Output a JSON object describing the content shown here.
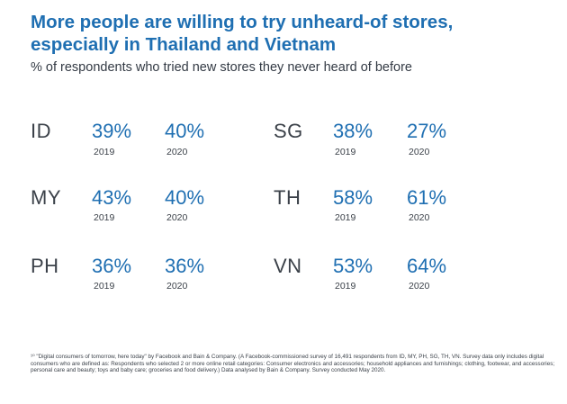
{
  "title": "More people are willing to try unheard-of stores, especially in Thailand and Vietnam",
  "subtitle": "% of respondents who tried new stores they never heard of before",
  "footnote": "¹⁰ \"Digital consumers of tomorrow, here today\" by Facebook and Bain & Company. (A Facebook-commissioned survey of 16,491 respondents from ID, MY, PH, SG, TH, VN. Survey data only includes digital consumers who are defined as: Respondents who selected 2 or more online retail categories: Consumer electronics and accessories; household appliances and furnishings; clothing, footwear, and accessories; personal care and beauty; toys and baby care; groceries and food delivery.) Data analysed by Bain & Company. Survey conducted May 2020.",
  "colors": {
    "accent": "#1f6fb2",
    "text": "#3b4149"
  },
  "chart_data": {
    "type": "table",
    "title": "More people are willing to try unheard-of stores, especially in Thailand and Vietnam",
    "subtitle": "% of respondents who tried new stores they never heard of before",
    "years": [
      "2019",
      "2020"
    ],
    "rows": [
      {
        "country": "ID",
        "values": [
          "39%",
          "40%"
        ]
      },
      {
        "country": "SG",
        "values": [
          "38%",
          "27%"
        ]
      },
      {
        "country": "MY",
        "values": [
          "43%",
          "40%"
        ]
      },
      {
        "country": "TH",
        "values": [
          "58%",
          "61%"
        ]
      },
      {
        "country": "PH",
        "values": [
          "36%",
          "36%"
        ]
      },
      {
        "country": "VN",
        "values": [
          "53%",
          "64%"
        ]
      }
    ]
  }
}
